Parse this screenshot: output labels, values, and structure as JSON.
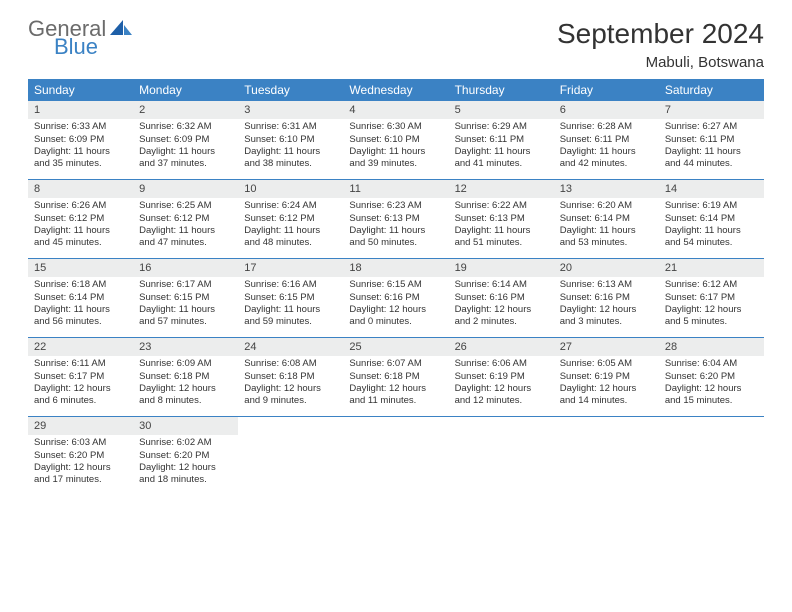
{
  "logo": {
    "text1": "General",
    "text2": "Blue"
  },
  "title": "September 2024",
  "location": "Mabuli, Botswana",
  "colors": {
    "header_bg": "#3b82c4",
    "header_text": "#ffffff",
    "daynum_bg": "#eceded",
    "border": "#3b82c4",
    "logo_gray": "#6b6b6b",
    "logo_blue": "#3b82c4"
  },
  "day_names": [
    "Sunday",
    "Monday",
    "Tuesday",
    "Wednesday",
    "Thursday",
    "Friday",
    "Saturday"
  ],
  "weeks": [
    [
      {
        "n": "1",
        "sr": "Sunrise: 6:33 AM",
        "ss": "Sunset: 6:09 PM",
        "d1": "Daylight: 11 hours",
        "d2": "and 35 minutes."
      },
      {
        "n": "2",
        "sr": "Sunrise: 6:32 AM",
        "ss": "Sunset: 6:09 PM",
        "d1": "Daylight: 11 hours",
        "d2": "and 37 minutes."
      },
      {
        "n": "3",
        "sr": "Sunrise: 6:31 AM",
        "ss": "Sunset: 6:10 PM",
        "d1": "Daylight: 11 hours",
        "d2": "and 38 minutes."
      },
      {
        "n": "4",
        "sr": "Sunrise: 6:30 AM",
        "ss": "Sunset: 6:10 PM",
        "d1": "Daylight: 11 hours",
        "d2": "and 39 minutes."
      },
      {
        "n": "5",
        "sr": "Sunrise: 6:29 AM",
        "ss": "Sunset: 6:11 PM",
        "d1": "Daylight: 11 hours",
        "d2": "and 41 minutes."
      },
      {
        "n": "6",
        "sr": "Sunrise: 6:28 AM",
        "ss": "Sunset: 6:11 PM",
        "d1": "Daylight: 11 hours",
        "d2": "and 42 minutes."
      },
      {
        "n": "7",
        "sr": "Sunrise: 6:27 AM",
        "ss": "Sunset: 6:11 PM",
        "d1": "Daylight: 11 hours",
        "d2": "and 44 minutes."
      }
    ],
    [
      {
        "n": "8",
        "sr": "Sunrise: 6:26 AM",
        "ss": "Sunset: 6:12 PM",
        "d1": "Daylight: 11 hours",
        "d2": "and 45 minutes."
      },
      {
        "n": "9",
        "sr": "Sunrise: 6:25 AM",
        "ss": "Sunset: 6:12 PM",
        "d1": "Daylight: 11 hours",
        "d2": "and 47 minutes."
      },
      {
        "n": "10",
        "sr": "Sunrise: 6:24 AM",
        "ss": "Sunset: 6:12 PM",
        "d1": "Daylight: 11 hours",
        "d2": "and 48 minutes."
      },
      {
        "n": "11",
        "sr": "Sunrise: 6:23 AM",
        "ss": "Sunset: 6:13 PM",
        "d1": "Daylight: 11 hours",
        "d2": "and 50 minutes."
      },
      {
        "n": "12",
        "sr": "Sunrise: 6:22 AM",
        "ss": "Sunset: 6:13 PM",
        "d1": "Daylight: 11 hours",
        "d2": "and 51 minutes."
      },
      {
        "n": "13",
        "sr": "Sunrise: 6:20 AM",
        "ss": "Sunset: 6:14 PM",
        "d1": "Daylight: 11 hours",
        "d2": "and 53 minutes."
      },
      {
        "n": "14",
        "sr": "Sunrise: 6:19 AM",
        "ss": "Sunset: 6:14 PM",
        "d1": "Daylight: 11 hours",
        "d2": "and 54 minutes."
      }
    ],
    [
      {
        "n": "15",
        "sr": "Sunrise: 6:18 AM",
        "ss": "Sunset: 6:14 PM",
        "d1": "Daylight: 11 hours",
        "d2": "and 56 minutes."
      },
      {
        "n": "16",
        "sr": "Sunrise: 6:17 AM",
        "ss": "Sunset: 6:15 PM",
        "d1": "Daylight: 11 hours",
        "d2": "and 57 minutes."
      },
      {
        "n": "17",
        "sr": "Sunrise: 6:16 AM",
        "ss": "Sunset: 6:15 PM",
        "d1": "Daylight: 11 hours",
        "d2": "and 59 minutes."
      },
      {
        "n": "18",
        "sr": "Sunrise: 6:15 AM",
        "ss": "Sunset: 6:16 PM",
        "d1": "Daylight: 12 hours",
        "d2": "and 0 minutes."
      },
      {
        "n": "19",
        "sr": "Sunrise: 6:14 AM",
        "ss": "Sunset: 6:16 PM",
        "d1": "Daylight: 12 hours",
        "d2": "and 2 minutes."
      },
      {
        "n": "20",
        "sr": "Sunrise: 6:13 AM",
        "ss": "Sunset: 6:16 PM",
        "d1": "Daylight: 12 hours",
        "d2": "and 3 minutes."
      },
      {
        "n": "21",
        "sr": "Sunrise: 6:12 AM",
        "ss": "Sunset: 6:17 PM",
        "d1": "Daylight: 12 hours",
        "d2": "and 5 minutes."
      }
    ],
    [
      {
        "n": "22",
        "sr": "Sunrise: 6:11 AM",
        "ss": "Sunset: 6:17 PM",
        "d1": "Daylight: 12 hours",
        "d2": "and 6 minutes."
      },
      {
        "n": "23",
        "sr": "Sunrise: 6:09 AM",
        "ss": "Sunset: 6:18 PM",
        "d1": "Daylight: 12 hours",
        "d2": "and 8 minutes."
      },
      {
        "n": "24",
        "sr": "Sunrise: 6:08 AM",
        "ss": "Sunset: 6:18 PM",
        "d1": "Daylight: 12 hours",
        "d2": "and 9 minutes."
      },
      {
        "n": "25",
        "sr": "Sunrise: 6:07 AM",
        "ss": "Sunset: 6:18 PM",
        "d1": "Daylight: 12 hours",
        "d2": "and 11 minutes."
      },
      {
        "n": "26",
        "sr": "Sunrise: 6:06 AM",
        "ss": "Sunset: 6:19 PM",
        "d1": "Daylight: 12 hours",
        "d2": "and 12 minutes."
      },
      {
        "n": "27",
        "sr": "Sunrise: 6:05 AM",
        "ss": "Sunset: 6:19 PM",
        "d1": "Daylight: 12 hours",
        "d2": "and 14 minutes."
      },
      {
        "n": "28",
        "sr": "Sunrise: 6:04 AM",
        "ss": "Sunset: 6:20 PM",
        "d1": "Daylight: 12 hours",
        "d2": "and 15 minutes."
      }
    ],
    [
      {
        "n": "29",
        "sr": "Sunrise: 6:03 AM",
        "ss": "Sunset: 6:20 PM",
        "d1": "Daylight: 12 hours",
        "d2": "and 17 minutes."
      },
      {
        "n": "30",
        "sr": "Sunrise: 6:02 AM",
        "ss": "Sunset: 6:20 PM",
        "d1": "Daylight: 12 hours",
        "d2": "and 18 minutes."
      },
      null,
      null,
      null,
      null,
      null
    ]
  ]
}
